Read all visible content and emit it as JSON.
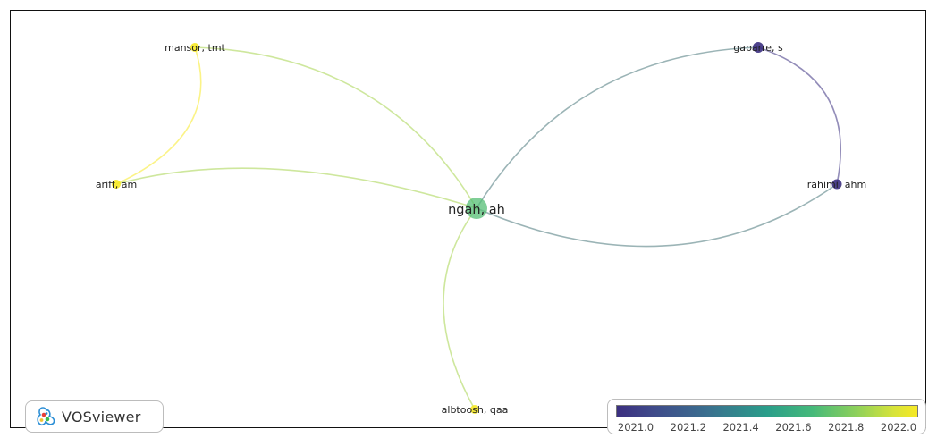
{
  "legend": {
    "colormap": [
      "#3b2f80",
      "#3f4a8a",
      "#3a6f8f",
      "#2a9e8a",
      "#45b97a",
      "#8fd15a",
      "#d6e33a",
      "#f7e925"
    ],
    "ticks": [
      "2021.0",
      "2021.2",
      "2021.4",
      "2021.6",
      "2021.8",
      "2022.0"
    ]
  },
  "logo": {
    "text": "VOSviewer",
    "icon": "vosviewer-logo-icon"
  },
  "network": {
    "nodes": [
      {
        "id": "ngah",
        "label": "ngah, ah",
        "year": 2021.6,
        "weight": "large"
      },
      {
        "id": "mansor",
        "label": "mansor, tmt",
        "year": 2022.0,
        "weight": "small"
      },
      {
        "id": "ariff",
        "label": "ariff, am",
        "year": 2022.0,
        "weight": "small"
      },
      {
        "id": "albtoosh",
        "label": "albtoosh, qaa",
        "year": 2022.0,
        "weight": "small"
      },
      {
        "id": "gabarre",
        "label": "gabarre, s",
        "year": 2021.0,
        "weight": "small"
      },
      {
        "id": "rahimi",
        "label": "rahimi, ahm",
        "year": 2021.0,
        "weight": "small"
      }
    ],
    "links": [
      {
        "source": "ngah",
        "target": "mansor"
      },
      {
        "source": "ngah",
        "target": "ariff"
      },
      {
        "source": "mansor",
        "target": "ariff"
      },
      {
        "source": "ngah",
        "target": "albtoosh"
      },
      {
        "source": "ngah",
        "target": "gabarre"
      },
      {
        "source": "ngah",
        "target": "rahimi"
      },
      {
        "source": "gabarre",
        "target": "rahimi"
      }
    ]
  }
}
